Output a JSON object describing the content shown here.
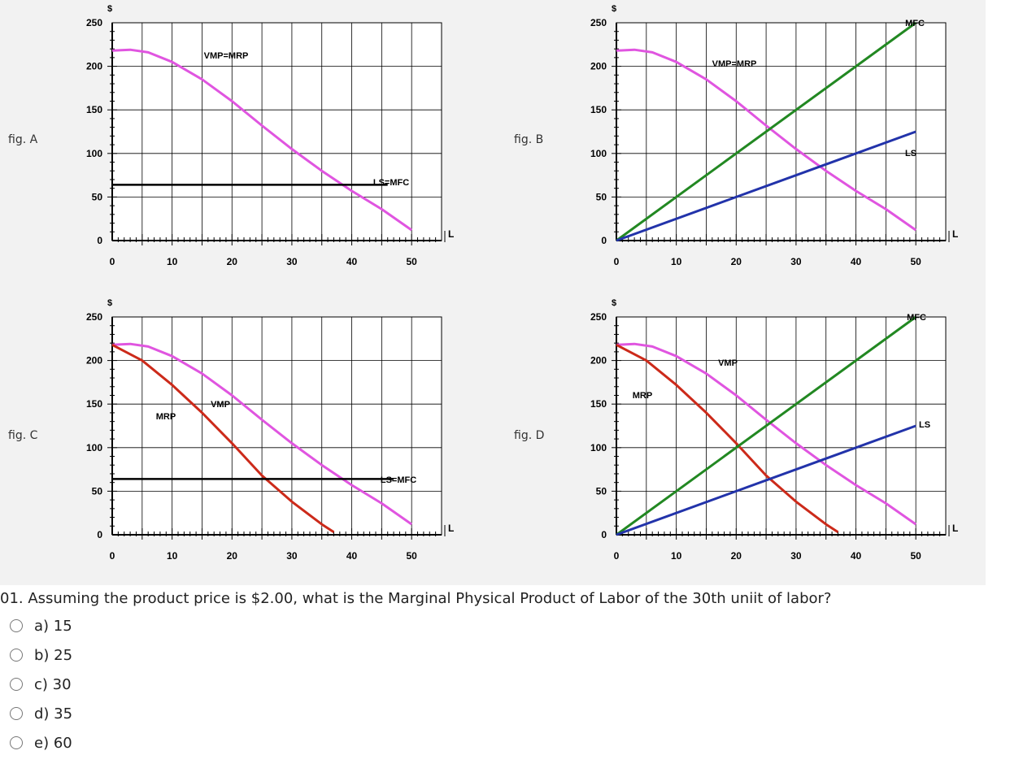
{
  "figures": [
    {
      "label": "fig. A",
      "chart_data": {
        "type": "line",
        "ylabel": "$",
        "xlabel": "L",
        "xlim": [
          0,
          55
        ],
        "ylim": [
          0,
          250
        ],
        "x_ticks": [
          "0",
          "10",
          "20",
          "30",
          "40",
          "50"
        ],
        "y_ticks": [
          "0",
          "50",
          "100",
          "150",
          "200",
          "250"
        ],
        "series": [
          {
            "name": "VMP=MRP",
            "color": "#e055e0",
            "points": [
              [
                0,
                218
              ],
              [
                3,
                219
              ],
              [
                6,
                216
              ],
              [
                10,
                205
              ],
              [
                15,
                185
              ],
              [
                20,
                160
              ],
              [
                25,
                132
              ],
              [
                30,
                105
              ],
              [
                35,
                80
              ],
              [
                40,
                57
              ],
              [
                45,
                36
              ],
              [
                50,
                12
              ]
            ]
          },
          {
            "name": "LS=MFC",
            "color": "#000000",
            "points": [
              [
                0,
                64
              ],
              [
                46,
                64
              ]
            ]
          }
        ],
        "annotations": [
          "VMP=MRP",
          "LS=MFC"
        ]
      }
    },
    {
      "label": "fig. B",
      "chart_data": {
        "type": "line",
        "ylabel": "$",
        "xlabel": "L",
        "xlim": [
          0,
          55
        ],
        "ylim": [
          0,
          250
        ],
        "x_ticks": [
          "0",
          "10",
          "20",
          "30",
          "40",
          "50"
        ],
        "y_ticks": [
          "0",
          "50",
          "100",
          "150",
          "200",
          "250"
        ],
        "series": [
          {
            "name": "VMP=MRP",
            "color": "#e055e0",
            "points": [
              [
                0,
                218
              ],
              [
                3,
                219
              ],
              [
                6,
                216
              ],
              [
                10,
                205
              ],
              [
                15,
                185
              ],
              [
                20,
                160
              ],
              [
                25,
                132
              ],
              [
                30,
                105
              ],
              [
                35,
                80
              ],
              [
                40,
                57
              ],
              [
                45,
                36
              ],
              [
                50,
                12
              ]
            ]
          },
          {
            "name": "MFC",
            "color": "#228822",
            "points": [
              [
                0,
                0
              ],
              [
                50,
                250
              ]
            ]
          },
          {
            "name": "LS",
            "color": "#2233aa",
            "points": [
              [
                0,
                0
              ],
              [
                50,
                125
              ]
            ]
          }
        ],
        "annotations": [
          "VMP=MRP",
          "MFC",
          "LS"
        ]
      }
    },
    {
      "label": "fig. C",
      "chart_data": {
        "type": "line",
        "ylabel": "$",
        "xlabel": "L",
        "xlim": [
          0,
          55
        ],
        "ylim": [
          0,
          250
        ],
        "x_ticks": [
          "0",
          "10",
          "20",
          "30",
          "40",
          "50"
        ],
        "y_ticks": [
          "0",
          "50",
          "100",
          "150",
          "200",
          "250"
        ],
        "series": [
          {
            "name": "VMP",
            "color": "#e055e0",
            "points": [
              [
                0,
                218
              ],
              [
                3,
                219
              ],
              [
                6,
                216
              ],
              [
                10,
                205
              ],
              [
                15,
                185
              ],
              [
                20,
                160
              ],
              [
                25,
                132
              ],
              [
                30,
                105
              ],
              [
                35,
                80
              ],
              [
                40,
                57
              ],
              [
                45,
                36
              ],
              [
                50,
                12
              ]
            ]
          },
          {
            "name": "MRP",
            "color": "#cc2a1a",
            "points": [
              [
                0,
                218
              ],
              [
                5,
                200
              ],
              [
                10,
                172
              ],
              [
                15,
                140
              ],
              [
                20,
                105
              ],
              [
                25,
                68
              ],
              [
                30,
                38
              ],
              [
                35,
                12
              ],
              [
                37,
                3
              ]
            ]
          },
          {
            "name": "LS=MFC",
            "color": "#000000",
            "points": [
              [
                0,
                64
              ],
              [
                47,
                64
              ]
            ]
          }
        ],
        "annotations": [
          "VMP",
          "MRP",
          "LS=MFC"
        ]
      }
    },
    {
      "label": "fig. D",
      "chart_data": {
        "type": "line",
        "ylabel": "$",
        "xlabel": "L",
        "xlim": [
          0,
          55
        ],
        "ylim": [
          0,
          250
        ],
        "x_ticks": [
          "0",
          "10",
          "20",
          "30",
          "40",
          "50"
        ],
        "y_ticks": [
          "0",
          "50",
          "100",
          "150",
          "200",
          "250"
        ],
        "series": [
          {
            "name": "VMP",
            "color": "#e055e0",
            "points": [
              [
                0,
                218
              ],
              [
                3,
                219
              ],
              [
                6,
                216
              ],
              [
                10,
                205
              ],
              [
                15,
                185
              ],
              [
                20,
                160
              ],
              [
                25,
                132
              ],
              [
                30,
                105
              ],
              [
                35,
                80
              ],
              [
                40,
                57
              ],
              [
                45,
                36
              ],
              [
                50,
                12
              ]
            ]
          },
          {
            "name": "MRP",
            "color": "#cc2a1a",
            "points": [
              [
                0,
                218
              ],
              [
                5,
                200
              ],
              [
                10,
                172
              ],
              [
                15,
                140
              ],
              [
                20,
                105
              ],
              [
                25,
                68
              ],
              [
                30,
                38
              ],
              [
                35,
                12
              ],
              [
                37,
                3
              ]
            ]
          },
          {
            "name": "MFC",
            "color": "#228822",
            "points": [
              [
                0,
                0
              ],
              [
                50,
                250
              ]
            ]
          },
          {
            "name": "LS",
            "color": "#2233aa",
            "points": [
              [
                0,
                0
              ],
              [
                50,
                125
              ]
            ]
          }
        ],
        "annotations": [
          "VMP",
          "MRP",
          "MFC",
          "LS"
        ]
      }
    }
  ],
  "question": {
    "text": "01. Assuming the product price is $2.00, what is the Marginal Physical Product of Labor of the 30th uniit of labor?",
    "options": [
      {
        "label": "a) 15"
      },
      {
        "label": "b) 25"
      },
      {
        "label": "c) 30"
      },
      {
        "label": "d) 35"
      },
      {
        "label": "e) 60"
      }
    ]
  }
}
